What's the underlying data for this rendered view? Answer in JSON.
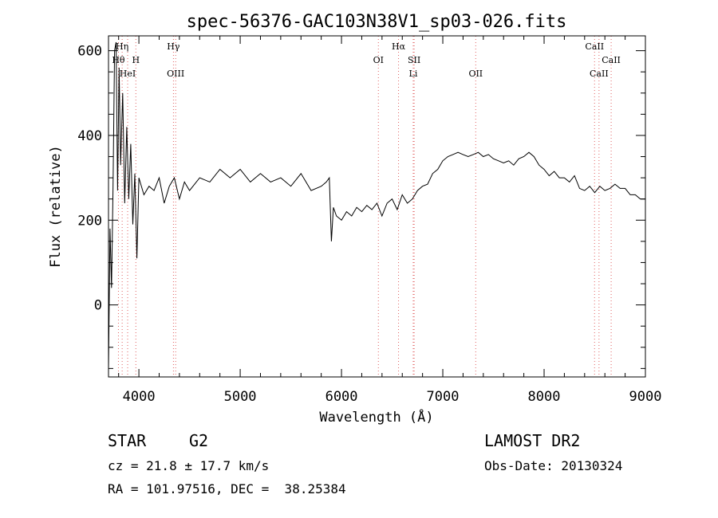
{
  "chart_data": {
    "type": "line",
    "title": "spec-56376-GAC103N38V1_sp03-026.fits",
    "xlabel": "Wavelength (Å)",
    "ylabel": "Flux (relative)",
    "xlim": [
      3700,
      9000
    ],
    "ylim": [
      -170,
      635
    ],
    "x_ticks": [
      4000,
      5000,
      6000,
      7000,
      8000,
      9000
    ],
    "y_ticks": [
      0,
      200,
      400,
      600
    ],
    "x_tick_labels": [
      "4000",
      "5000",
      "6000",
      "7000",
      "8000",
      "9000"
    ],
    "y_tick_labels": [
      "0",
      "200",
      "400",
      "600"
    ],
    "grid": false,
    "line_color": "#000000",
    "marker_color": "#e06060",
    "spectral_lines": [
      {
        "label": "Hη",
        "wavelength": 3835,
        "row": 0
      },
      {
        "label": "Hθ",
        "wavelength": 3798,
        "row": 1
      },
      {
        "label": "H",
        "wavelength": 3970,
        "row": 1
      },
      {
        "label": "HeI",
        "wavelength": 3889,
        "row": 2
      },
      {
        "label": "Hγ",
        "wavelength": 4341,
        "row": 0
      },
      {
        "label": "OIII",
        "wavelength": 4363,
        "row": 2
      },
      {
        "label": "OI",
        "wavelength": 6364,
        "row": 1
      },
      {
        "label": "Hα",
        "wavelength": 6563,
        "row": 0
      },
      {
        "label": "SII",
        "wavelength": 6717,
        "row": 1
      },
      {
        "label": "Li",
        "wavelength": 6708,
        "row": 2
      },
      {
        "label": "OII",
        "wavelength": 7325,
        "row": 2
      },
      {
        "label": "CaII",
        "wavelength": 8498,
        "row": 0
      },
      {
        "label": "CaII",
        "wavelength": 8662,
        "row": 1
      },
      {
        "label": "CaII",
        "wavelength": 8542,
        "row": 2
      }
    ],
    "series": [
      {
        "x": [
          3700,
          3715,
          3730,
          3745,
          3760,
          3775,
          3790,
          3805,
          3820,
          3840,
          3860,
          3880,
          3900,
          3920,
          3940,
          3960,
          3980,
          4000,
          4050,
          4100,
          4150,
          4200,
          4250,
          4300,
          4350,
          4400,
          4450,
          4500,
          4600,
          4700,
          4800,
          4900,
          5000,
          5100,
          5200,
          5300,
          5400,
          5500,
          5600,
          5700,
          5800,
          5850,
          5880,
          5900,
          5920,
          5950,
          6000,
          6050,
          6100,
          6150,
          6200,
          6250,
          6300,
          6350,
          6400,
          6450,
          6500,
          6550,
          6600,
          6650,
          6700,
          6750,
          6800,
          6850,
          6900,
          6950,
          7000,
          7050,
          7100,
          7150,
          7200,
          7250,
          7300,
          7350,
          7400,
          7450,
          7500,
          7550,
          7600,
          7650,
          7700,
          7750,
          7800,
          7850,
          7900,
          7950,
          8000,
          8050,
          8100,
          8150,
          8200,
          8250,
          8300,
          8350,
          8400,
          8450,
          8500,
          8550,
          8600,
          8650,
          8700,
          8750,
          8800,
          8850,
          8900,
          8950,
          9000
        ],
        "y": [
          -150,
          180,
          40,
          280,
          600,
          620,
          270,
          560,
          330,
          500,
          240,
          420,
          250,
          380,
          190,
          310,
          110,
          300,
          260,
          280,
          270,
          300,
          240,
          280,
          300,
          250,
          290,
          270,
          300,
          290,
          320,
          300,
          320,
          290,
          310,
          290,
          300,
          280,
          310,
          270,
          280,
          290,
          300,
          150,
          230,
          210,
          200,
          220,
          210,
          230,
          220,
          235,
          225,
          240,
          210,
          240,
          250,
          225,
          260,
          240,
          250,
          270,
          280,
          285,
          310,
          320,
          340,
          350,
          355,
          360,
          355,
          350,
          355,
          360,
          350,
          355,
          345,
          340,
          335,
          340,
          330,
          345,
          350,
          360,
          350,
          330,
          320,
          305,
          315,
          300,
          300,
          290,
          305,
          275,
          270,
          280,
          265,
          280,
          270,
          275,
          285,
          275,
          275,
          260,
          260,
          250,
          250
        ]
      }
    ]
  },
  "info": {
    "object_class": "STAR",
    "subclass": "G2",
    "survey": "LAMOST DR2",
    "cz": "cz = 21.8 ± 17.7 km/s",
    "obs_date": "Obs-Date: 20130324",
    "coords": "RA = 101.97516, DEC =  38.25384"
  }
}
